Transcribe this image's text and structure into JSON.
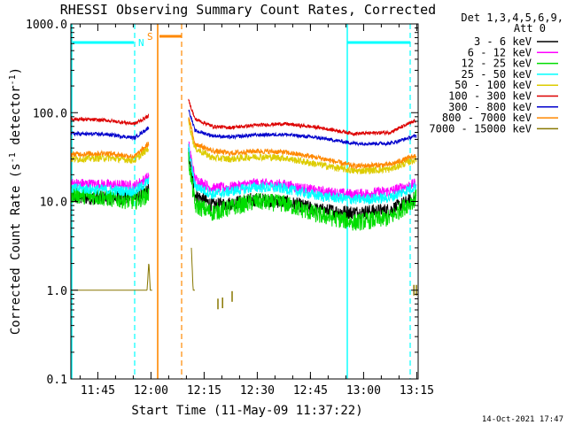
{
  "chart_data": {
    "type": "line",
    "title": "RHESSI Observing Summary Count Rates, Corrected",
    "xlabel": "Start Time (11-May-09 11:37:22)",
    "ylabel_main": "Corrected Count Rate (s",
    "ylabel_sup1": "-1",
    "ylabel_mid": " detector",
    "ylabel_sup2": "-1",
    "ylabel_end": ")",
    "yscale": "log",
    "ylim": [
      0.1,
      1000
    ],
    "xlim_minutes": [
      0,
      98
    ],
    "x_tick_labels": [
      "11:45",
      "12:00",
      "12:15",
      "12:30",
      "12:45",
      "13:00",
      "13:15"
    ],
    "x_tick_minutes": [
      7.6,
      22.6,
      37.6,
      52.6,
      67.6,
      82.6,
      97.6
    ],
    "y_tick_labels": [
      "0.1",
      "1.0",
      "10.0",
      "100.0",
      "1000.0"
    ],
    "y_tick_values": [
      0.1,
      1,
      10,
      100,
      1000
    ],
    "footer_date": "14-Oct-2021 17:47",
    "legend_header": [
      "Det 1,3,4,5,6,9,",
      "Att 0"
    ],
    "legend": [
      {
        "label": "3 - 6 keV",
        "color": "#000000"
      },
      {
        "label": "6 - 12 keV",
        "color": "#ff00ff"
      },
      {
        "label": "12 - 25 keV",
        "color": "#00dd00"
      },
      {
        "label": "25 - 50 keV",
        "color": "#00ffff"
      },
      {
        "label": "50 - 100 keV",
        "color": "#ddcc00"
      },
      {
        "label": "100 - 300 keV",
        "color": "#dd0000"
      },
      {
        "label": "300 - 800 keV",
        "color": "#0000cc"
      },
      {
        "label": "800 - 7000 keV",
        "color": "#ff8800"
      },
      {
        "label": "7000 - 15000 keV",
        "color": "#887700"
      }
    ],
    "flags": {
      "saa_color": "#00ffff",
      "night_color": "#ff8800",
      "saa_label": "S",
      "night_label": "N"
    },
    "gaps_minutes": [
      [
        23.5,
        33.0
      ]
    ],
    "series": [
      {
        "key": "3-6",
        "color": "#000000",
        "noise": 0.08,
        "pre": [
          [
            0,
            11
          ],
          [
            10,
            11
          ],
          [
            18,
            11
          ],
          [
            22,
            13.5
          ]
        ],
        "post": [
          [
            33.2,
            35
          ],
          [
            35,
            12
          ],
          [
            40,
            9
          ],
          [
            45,
            9.5
          ],
          [
            52,
            10.5
          ],
          [
            60,
            10
          ],
          [
            70,
            8
          ],
          [
            80,
            7.5
          ],
          [
            90,
            8
          ],
          [
            97.5,
            11
          ]
        ]
      },
      {
        "key": "6-12",
        "color": "#ff00ff",
        "noise": 0.06,
        "pre": [
          [
            0,
            16
          ],
          [
            10,
            15.5
          ],
          [
            18,
            15
          ],
          [
            22,
            19
          ]
        ],
        "post": [
          [
            33.2,
            45
          ],
          [
            35,
            18
          ],
          [
            40,
            14
          ],
          [
            45,
            14.5
          ],
          [
            52,
            16
          ],
          [
            60,
            15.5
          ],
          [
            70,
            13
          ],
          [
            80,
            12
          ],
          [
            90,
            13
          ],
          [
            97.5,
            16
          ]
        ]
      },
      {
        "key": "12-25",
        "color": "#00dd00",
        "noise": 0.1,
        "pre": [
          [
            0,
            12
          ],
          [
            10,
            11
          ],
          [
            18,
            10
          ],
          [
            22,
            12
          ]
        ],
        "post": [
          [
            33.2,
            30
          ],
          [
            35,
            9
          ],
          [
            40,
            7.5
          ],
          [
            45,
            8.5
          ],
          [
            52,
            10
          ],
          [
            60,
            9.5
          ],
          [
            70,
            7
          ],
          [
            80,
            5.8
          ],
          [
            90,
            6.5
          ],
          [
            97.5,
            11
          ]
        ]
      },
      {
        "key": "25-50",
        "color": "#00ffff",
        "noise": 0.06,
        "pre": [
          [
            0,
            14
          ],
          [
            10,
            13.5
          ],
          [
            18,
            13
          ],
          [
            22,
            17
          ]
        ],
        "post": [
          [
            33.2,
            40
          ],
          [
            35,
            15
          ],
          [
            40,
            12
          ],
          [
            45,
            13
          ],
          [
            52,
            14.5
          ],
          [
            60,
            14
          ],
          [
            70,
            11.5
          ],
          [
            80,
            10.5
          ],
          [
            90,
            11
          ],
          [
            97.5,
            15
          ]
        ]
      },
      {
        "key": "50-100",
        "color": "#ddcc00",
        "noise": 0.04,
        "pre": [
          [
            0,
            30
          ],
          [
            10,
            31
          ],
          [
            18,
            29
          ],
          [
            22,
            40
          ]
        ],
        "post": [
          [
            33.2,
            80
          ],
          [
            35,
            40
          ],
          [
            40,
            31
          ],
          [
            45,
            30
          ],
          [
            52,
            32
          ],
          [
            60,
            31
          ],
          [
            70,
            26
          ],
          [
            80,
            22
          ],
          [
            90,
            23
          ],
          [
            97.5,
            30
          ]
        ]
      },
      {
        "key": "100-300",
        "color": "#dd0000",
        "noise": 0.02,
        "pre": [
          [
            0,
            85
          ],
          [
            10,
            82
          ],
          [
            18,
            75
          ],
          [
            22,
            92
          ]
        ],
        "post": [
          [
            33.2,
            140
          ],
          [
            35,
            85
          ],
          [
            40,
            70
          ],
          [
            45,
            68
          ],
          [
            52,
            72
          ],
          [
            60,
            75
          ],
          [
            70,
            68
          ],
          [
            80,
            58
          ],
          [
            90,
            60
          ],
          [
            97.5,
            82
          ]
        ]
      },
      {
        "key": "300-800",
        "color": "#0000cc",
        "noise": 0.02,
        "pre": [
          [
            0,
            58
          ],
          [
            10,
            57
          ],
          [
            18,
            52
          ],
          [
            22,
            68
          ]
        ],
        "post": [
          [
            33.2,
            110
          ],
          [
            35,
            63
          ],
          [
            40,
            55
          ],
          [
            45,
            53
          ],
          [
            52,
            56
          ],
          [
            60,
            57
          ],
          [
            70,
            52
          ],
          [
            80,
            45
          ],
          [
            90,
            45
          ],
          [
            97.5,
            55
          ]
        ]
      },
      {
        "key": "800-7000",
        "color": "#ff8800",
        "noise": 0.03,
        "pre": [
          [
            0,
            34
          ],
          [
            10,
            35
          ],
          [
            18,
            32
          ],
          [
            22,
            45
          ]
        ],
        "post": [
          [
            33.2,
            90
          ],
          [
            35,
            45
          ],
          [
            40,
            37
          ],
          [
            45,
            35
          ],
          [
            52,
            37
          ],
          [
            60,
            36
          ],
          [
            70,
            31
          ],
          [
            80,
            25
          ],
          [
            90,
            26
          ],
          [
            97.5,
            33
          ]
        ]
      },
      {
        "key": "7000-15000",
        "color": "#887700",
        "noise": 0,
        "pre": [
          [
            0,
            1.0
          ],
          [
            21.5,
            1.0
          ],
          [
            22,
            2.1
          ],
          [
            22.4,
            1.0
          ],
          [
            23,
            1.0
          ]
        ],
        "post": [
          [
            34,
            3.0
          ],
          [
            34.5,
            1.0
          ],
          [
            35,
            1.0
          ]
        ]
      }
    ],
    "extra_marks_7000": [
      [
        41.5,
        0.7
      ],
      [
        42.8,
        0.72
      ],
      [
        45.5,
        0.85
      ],
      [
        96.8,
        1.0
      ],
      [
        97.5,
        1.0
      ]
    ]
  }
}
